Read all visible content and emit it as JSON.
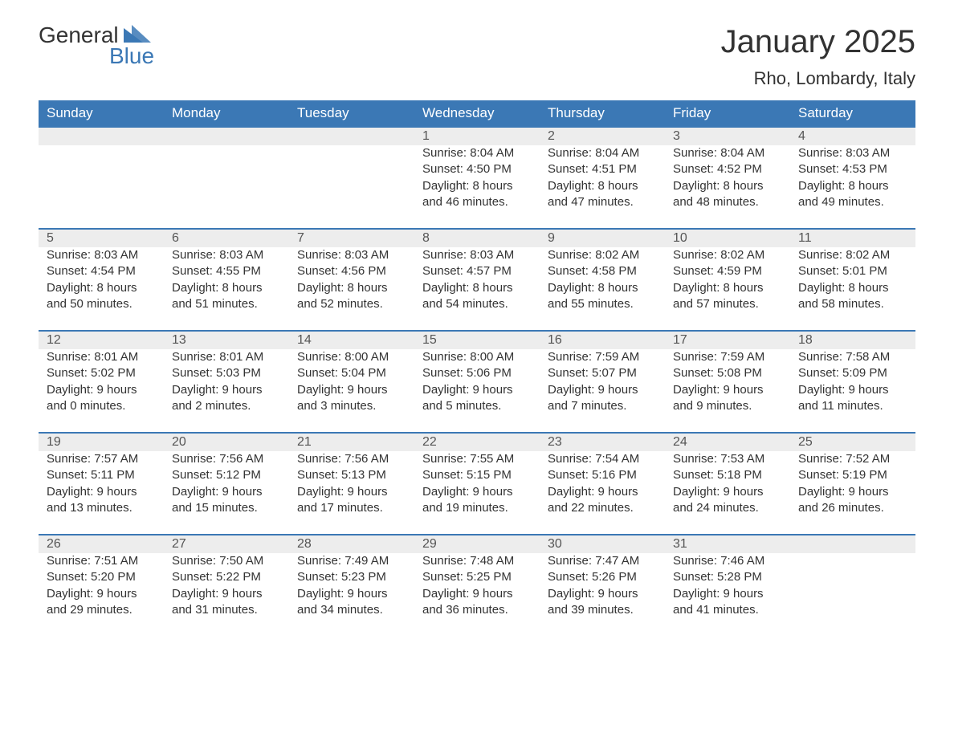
{
  "logo": {
    "text1": "General",
    "text2": "Blue",
    "triangle_color": "#3b78b5"
  },
  "title": "January 2025",
  "subtitle": "Rho, Lombardy, Italy",
  "colors": {
    "header_bg": "#3b78b5",
    "header_text": "#ffffff",
    "daynum_bg": "#ededed",
    "daynum_border": "#3b78b5",
    "body_text": "#333333",
    "page_bg": "#ffffff"
  },
  "day_headers": [
    "Sunday",
    "Monday",
    "Tuesday",
    "Wednesday",
    "Thursday",
    "Friday",
    "Saturday"
  ],
  "weeks": [
    [
      null,
      null,
      null,
      {
        "n": "1",
        "sunrise": "8:04 AM",
        "sunset": "4:50 PM",
        "dl1": "8 hours",
        "dl2": "46 minutes."
      },
      {
        "n": "2",
        "sunrise": "8:04 AM",
        "sunset": "4:51 PM",
        "dl1": "8 hours",
        "dl2": "47 minutes."
      },
      {
        "n": "3",
        "sunrise": "8:04 AM",
        "sunset": "4:52 PM",
        "dl1": "8 hours",
        "dl2": "48 minutes."
      },
      {
        "n": "4",
        "sunrise": "8:03 AM",
        "sunset": "4:53 PM",
        "dl1": "8 hours",
        "dl2": "49 minutes."
      }
    ],
    [
      {
        "n": "5",
        "sunrise": "8:03 AM",
        "sunset": "4:54 PM",
        "dl1": "8 hours",
        "dl2": "50 minutes."
      },
      {
        "n": "6",
        "sunrise": "8:03 AM",
        "sunset": "4:55 PM",
        "dl1": "8 hours",
        "dl2": "51 minutes."
      },
      {
        "n": "7",
        "sunrise": "8:03 AM",
        "sunset": "4:56 PM",
        "dl1": "8 hours",
        "dl2": "52 minutes."
      },
      {
        "n": "8",
        "sunrise": "8:03 AM",
        "sunset": "4:57 PM",
        "dl1": "8 hours",
        "dl2": "54 minutes."
      },
      {
        "n": "9",
        "sunrise": "8:02 AM",
        "sunset": "4:58 PM",
        "dl1": "8 hours",
        "dl2": "55 minutes."
      },
      {
        "n": "10",
        "sunrise": "8:02 AM",
        "sunset": "4:59 PM",
        "dl1": "8 hours",
        "dl2": "57 minutes."
      },
      {
        "n": "11",
        "sunrise": "8:02 AM",
        "sunset": "5:01 PM",
        "dl1": "8 hours",
        "dl2": "58 minutes."
      }
    ],
    [
      {
        "n": "12",
        "sunrise": "8:01 AM",
        "sunset": "5:02 PM",
        "dl1": "9 hours",
        "dl2": "0 minutes."
      },
      {
        "n": "13",
        "sunrise": "8:01 AM",
        "sunset": "5:03 PM",
        "dl1": "9 hours",
        "dl2": "2 minutes."
      },
      {
        "n": "14",
        "sunrise": "8:00 AM",
        "sunset": "5:04 PM",
        "dl1": "9 hours",
        "dl2": "3 minutes."
      },
      {
        "n": "15",
        "sunrise": "8:00 AM",
        "sunset": "5:06 PM",
        "dl1": "9 hours",
        "dl2": "5 minutes."
      },
      {
        "n": "16",
        "sunrise": "7:59 AM",
        "sunset": "5:07 PM",
        "dl1": "9 hours",
        "dl2": "7 minutes."
      },
      {
        "n": "17",
        "sunrise": "7:59 AM",
        "sunset": "5:08 PM",
        "dl1": "9 hours",
        "dl2": "9 minutes."
      },
      {
        "n": "18",
        "sunrise": "7:58 AM",
        "sunset": "5:09 PM",
        "dl1": "9 hours",
        "dl2": "11 minutes."
      }
    ],
    [
      {
        "n": "19",
        "sunrise": "7:57 AM",
        "sunset": "5:11 PM",
        "dl1": "9 hours",
        "dl2": "13 minutes."
      },
      {
        "n": "20",
        "sunrise": "7:56 AM",
        "sunset": "5:12 PM",
        "dl1": "9 hours",
        "dl2": "15 minutes."
      },
      {
        "n": "21",
        "sunrise": "7:56 AM",
        "sunset": "5:13 PM",
        "dl1": "9 hours",
        "dl2": "17 minutes."
      },
      {
        "n": "22",
        "sunrise": "7:55 AM",
        "sunset": "5:15 PM",
        "dl1": "9 hours",
        "dl2": "19 minutes."
      },
      {
        "n": "23",
        "sunrise": "7:54 AM",
        "sunset": "5:16 PM",
        "dl1": "9 hours",
        "dl2": "22 minutes."
      },
      {
        "n": "24",
        "sunrise": "7:53 AM",
        "sunset": "5:18 PM",
        "dl1": "9 hours",
        "dl2": "24 minutes."
      },
      {
        "n": "25",
        "sunrise": "7:52 AM",
        "sunset": "5:19 PM",
        "dl1": "9 hours",
        "dl2": "26 minutes."
      }
    ],
    [
      {
        "n": "26",
        "sunrise": "7:51 AM",
        "sunset": "5:20 PM",
        "dl1": "9 hours",
        "dl2": "29 minutes."
      },
      {
        "n": "27",
        "sunrise": "7:50 AM",
        "sunset": "5:22 PM",
        "dl1": "9 hours",
        "dl2": "31 minutes."
      },
      {
        "n": "28",
        "sunrise": "7:49 AM",
        "sunset": "5:23 PM",
        "dl1": "9 hours",
        "dl2": "34 minutes."
      },
      {
        "n": "29",
        "sunrise": "7:48 AM",
        "sunset": "5:25 PM",
        "dl1": "9 hours",
        "dl2": "36 minutes."
      },
      {
        "n": "30",
        "sunrise": "7:47 AM",
        "sunset": "5:26 PM",
        "dl1": "9 hours",
        "dl2": "39 minutes."
      },
      {
        "n": "31",
        "sunrise": "7:46 AM",
        "sunset": "5:28 PM",
        "dl1": "9 hours",
        "dl2": "41 minutes."
      },
      null
    ]
  ],
  "labels": {
    "sunrise": "Sunrise:",
    "sunset": "Sunset:",
    "daylight": "Daylight:",
    "and": "and"
  }
}
